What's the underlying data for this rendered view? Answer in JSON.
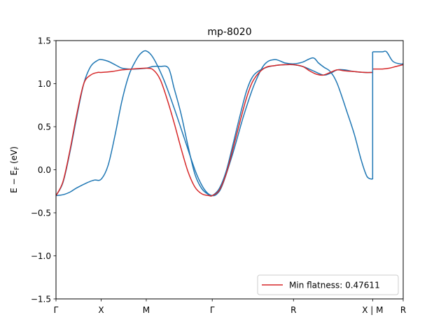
{
  "chart_data": {
    "type": "line",
    "title": "mp-8020",
    "xlabel": "",
    "ylabel_prefix": "E − E",
    "ylabel_sub": "F",
    "ylabel_suffix": " (eV)",
    "ylim": [
      -1.5,
      1.5
    ],
    "xlim": [
      0,
      5
    ],
    "y_ticks": [
      -1.5,
      -1.0,
      -0.5,
      0.0,
      0.5,
      1.0,
      1.5
    ],
    "y_tick_labels": [
      "−1.5",
      "−1.0",
      "−0.5",
      "0.0",
      "0.5",
      "1.0",
      "1.5"
    ],
    "x_ticks": [
      {
        "x": 0.0,
        "label": "Γ"
      },
      {
        "x": 0.65,
        "label": "X"
      },
      {
        "x": 1.3,
        "label": "M"
      },
      {
        "x": 2.25,
        "label": "Γ"
      },
      {
        "x": 3.42,
        "label": "R"
      },
      {
        "x": 4.56,
        "label": "X | M"
      },
      {
        "x": 5.0,
        "label": "R"
      }
    ],
    "grid": false,
    "legend_position": "lower-right",
    "series": [
      {
        "color": "#1f77b4",
        "x": [
          0.0,
          0.1,
          0.2,
          0.3,
          0.45,
          0.55,
          0.65,
          0.75,
          0.85,
          0.95,
          1.05,
          1.15,
          1.22,
          1.3,
          1.4,
          1.55,
          1.7,
          1.85,
          2.0,
          2.1,
          2.18,
          2.25,
          2.32,
          2.4,
          2.55,
          2.7,
          2.85,
          3.0,
          3.15,
          3.3,
          3.42,
          3.55,
          3.7,
          3.78,
          3.86,
          3.95,
          4.05,
          4.2,
          4.3,
          4.4,
          4.48,
          4.56
        ],
        "y": [
          -0.3,
          -0.29,
          -0.26,
          -0.21,
          -0.15,
          -0.12,
          -0.11,
          0.05,
          0.4,
          0.8,
          1.1,
          1.27,
          1.35,
          1.38,
          1.3,
          1.05,
          0.72,
          0.36,
          0.0,
          -0.18,
          -0.27,
          -0.3,
          -0.28,
          -0.17,
          0.2,
          0.62,
          0.98,
          1.22,
          1.28,
          1.24,
          1.23,
          1.25,
          1.3,
          1.24,
          1.19,
          1.14,
          1.0,
          0.65,
          0.4,
          0.1,
          -0.08,
          -0.11
        ]
      },
      {
        "color": "#1f77b4",
        "x": [
          0.0,
          0.1,
          0.2,
          0.3,
          0.4,
          0.5,
          0.6,
          0.65,
          0.75,
          0.85,
          0.95,
          1.05,
          1.15,
          1.3,
          1.4,
          1.5,
          1.62,
          1.7,
          1.8,
          1.9,
          2.0,
          2.1,
          2.2,
          2.25,
          2.35,
          2.45,
          2.55,
          2.65,
          2.75,
          2.85,
          3.0,
          3.15,
          3.3,
          3.42,
          3.55,
          3.7,
          3.85,
          3.95,
          4.05,
          4.15,
          4.3,
          4.45,
          4.56
        ],
        "y": [
          -0.3,
          -0.15,
          0.2,
          0.62,
          1.0,
          1.2,
          1.27,
          1.28,
          1.26,
          1.22,
          1.18,
          1.17,
          1.17,
          1.18,
          1.2,
          1.2,
          1.18,
          0.95,
          0.65,
          0.28,
          -0.05,
          -0.22,
          -0.29,
          -0.3,
          -0.22,
          -0.02,
          0.3,
          0.63,
          0.93,
          1.1,
          1.18,
          1.21,
          1.22,
          1.22,
          1.2,
          1.15,
          1.1,
          1.12,
          1.16,
          1.16,
          1.14,
          1.13,
          1.13
        ]
      },
      {
        "color": "#1f77b4",
        "x": [
          4.56,
          4.6,
          4.7,
          4.76,
          4.85,
          4.95,
          5.0
        ],
        "y": [
          1.37,
          1.37,
          1.37,
          1.37,
          1.26,
          1.23,
          1.23
        ]
      },
      {
        "color": "#d62728",
        "x": [
          0.0,
          0.1,
          0.2,
          0.3,
          0.4,
          0.5,
          0.6,
          0.65,
          0.8,
          0.95,
          1.1,
          1.3,
          1.4,
          1.5,
          1.6,
          1.7,
          1.8,
          1.9,
          2.0,
          2.1,
          2.2,
          2.25,
          2.35,
          2.45,
          2.55,
          2.65,
          2.75,
          2.85,
          3.0,
          3.15,
          3.3,
          3.42,
          3.55,
          3.65,
          3.75,
          3.85,
          3.95,
          4.05,
          4.15,
          4.3,
          4.45,
          4.56
        ],
        "y": [
          -0.3,
          -0.14,
          0.22,
          0.65,
          1.0,
          1.1,
          1.13,
          1.13,
          1.14,
          1.16,
          1.17,
          1.18,
          1.16,
          1.05,
          0.82,
          0.55,
          0.25,
          -0.02,
          -0.2,
          -0.28,
          -0.3,
          -0.3,
          -0.24,
          -0.05,
          0.25,
          0.56,
          0.85,
          1.05,
          1.18,
          1.21,
          1.22,
          1.22,
          1.2,
          1.15,
          1.11,
          1.1,
          1.13,
          1.16,
          1.15,
          1.14,
          1.13,
          1.13
        ]
      },
      {
        "color": "#d62728",
        "x": [
          4.56,
          4.7,
          4.8,
          4.9,
          5.0
        ],
        "y": [
          1.17,
          1.17,
          1.18,
          1.2,
          1.22
        ]
      }
    ],
    "discontinuity": {
      "x": 4.56,
      "y_from": -0.11,
      "y_to": 1.37,
      "color": "#1f77b4"
    },
    "legend": [
      {
        "label": "Min flatness: 0.47611",
        "color": "#d62728"
      }
    ]
  }
}
